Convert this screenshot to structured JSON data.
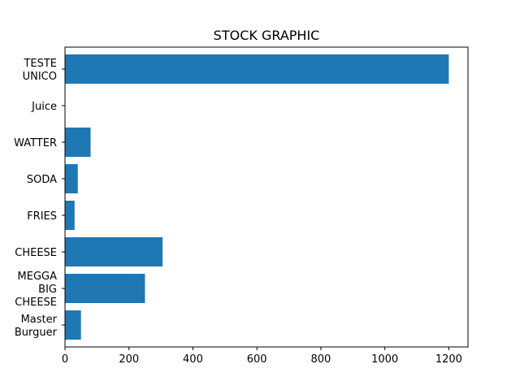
{
  "chart_data": {
    "type": "bar",
    "orientation": "horizontal",
    "title": "STOCK GRAPHIC",
    "xlabel": "",
    "ylabel": "",
    "categories": [
      "Master\nBurguer",
      "MEGGA\nBIG\nCHEESE",
      "CHEESE",
      "FRIES",
      "SODA",
      "WATTER",
      "Juice",
      "TESTE\nUNICO"
    ],
    "values": [
      50,
      250,
      305,
      30,
      40,
      80,
      0,
      1200
    ],
    "xlim": [
      0,
      1260
    ],
    "xticks": [
      0,
      200,
      400,
      600,
      800,
      1000,
      1200
    ],
    "bar_color": "#1f77b4",
    "grid": false,
    "legend": false
  }
}
